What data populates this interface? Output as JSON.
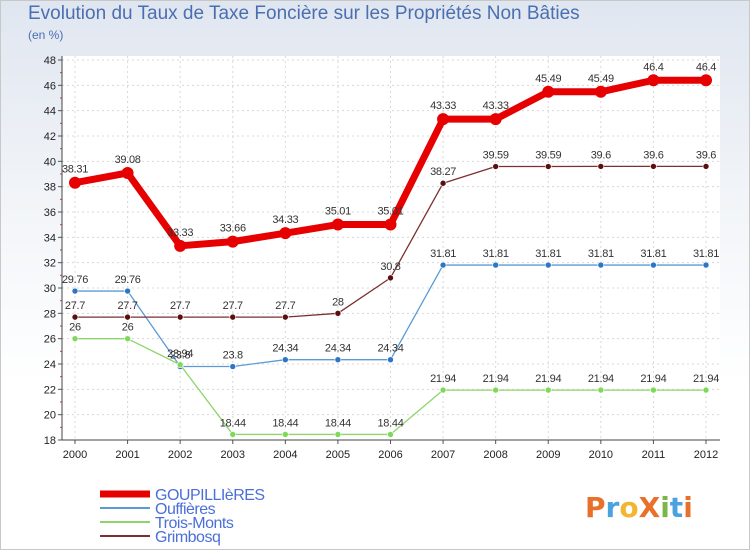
{
  "title": "Evolution du Taux de Taxe Foncière sur les Propriétés Non Bâties",
  "unit_label": "(en %)",
  "logo": {
    "text": "ProXiti",
    "letters": [
      "P",
      "r",
      "o",
      "X",
      "i",
      "t",
      "i"
    ],
    "colors": [
      "#e8702a",
      "#4aa3df",
      "#f2b632",
      "#e8702a",
      "#7ab648",
      "#4aa3df",
      "#e8702a"
    ]
  },
  "chart_data": {
    "type": "line",
    "title": "Evolution du Taux de Taxe Foncière sur les Propriétés Non Bâties",
    "ylabel": "(en %)",
    "xlabel": "",
    "ylim": [
      18,
      48
    ],
    "yticks": [
      "18",
      "20",
      "22",
      "24",
      "26",
      "28",
      "30",
      "32",
      "34",
      "36",
      "38",
      "40",
      "42",
      "44",
      "46",
      "48"
    ],
    "categories": [
      "2000",
      "2001",
      "2002",
      "2003",
      "2004",
      "2005",
      "2006",
      "2007",
      "2008",
      "2009",
      "2010",
      "2011",
      "2012"
    ],
    "series": [
      {
        "name": "GOUPILLIèRES",
        "color": "#e60000",
        "stroke": 7,
        "markerFill": "#e60000",
        "legendColor": "#4a6fd8",
        "values": [
          38.31,
          39.08,
          33.33,
          33.66,
          34.33,
          35.01,
          35.01,
          43.33,
          43.33,
          45.49,
          45.49,
          46.4,
          46.4
        ],
        "labels": [
          "38.31",
          "39.08",
          "33.33",
          "33.66",
          "34.33",
          "35.01",
          "35.01",
          "43.33",
          "43.33",
          "45.49",
          "45.49",
          "46.4",
          "46.4"
        ],
        "labelDy": -10
      },
      {
        "name": "Ouffières",
        "color": "#5b9bd5",
        "stroke": 1.3,
        "markerFill": "#2e75c5",
        "legendColor": "#4a6fd8",
        "values": [
          29.76,
          29.76,
          23.8,
          23.8,
          24.34,
          24.34,
          24.34,
          31.81,
          31.81,
          31.81,
          31.81,
          31.81,
          31.81
        ],
        "labels": [
          "29.76",
          "29.76",
          "23.8",
          "23.8",
          "24.34",
          "24.34",
          "24.34",
          "31.81",
          "31.81",
          "31.81",
          "31.81",
          "31.81",
          "31.81"
        ],
        "labelDy": -8
      },
      {
        "name": "Trois-Monts",
        "color": "#8fd46a",
        "stroke": 1.3,
        "markerFill": "#7ed957",
        "legendColor": "#4a6fd8",
        "values": [
          26,
          26,
          23.94,
          18.44,
          18.44,
          18.44,
          18.44,
          21.94,
          21.94,
          21.94,
          21.94,
          21.94,
          21.94
        ],
        "labels": [
          "26",
          "26",
          "23.94",
          "18.44",
          "18.44",
          "18.44",
          "18.44",
          "21.94",
          "21.94",
          "21.94",
          "21.94",
          "21.94",
          "21.94"
        ],
        "labelDy": -8
      },
      {
        "name": "Grimbosq",
        "color": "#7a3030",
        "stroke": 1.3,
        "markerFill": "#5a0f0f",
        "legendColor": "#4a6fd8",
        "values": [
          27.7,
          27.7,
          27.7,
          27.7,
          27.7,
          28,
          30.8,
          38.27,
          39.59,
          39.59,
          39.6,
          39.6,
          39.6
        ],
        "labels": [
          "27.7",
          "27.7",
          "27.7",
          "27.7",
          "27.7",
          "28",
          "30.8",
          "38.27",
          "39.59",
          "39.59",
          "39.6",
          "39.6",
          "39.6"
        ],
        "labelDy": -8
      }
    ],
    "legend_position": "bottom-left",
    "grid": true
  }
}
